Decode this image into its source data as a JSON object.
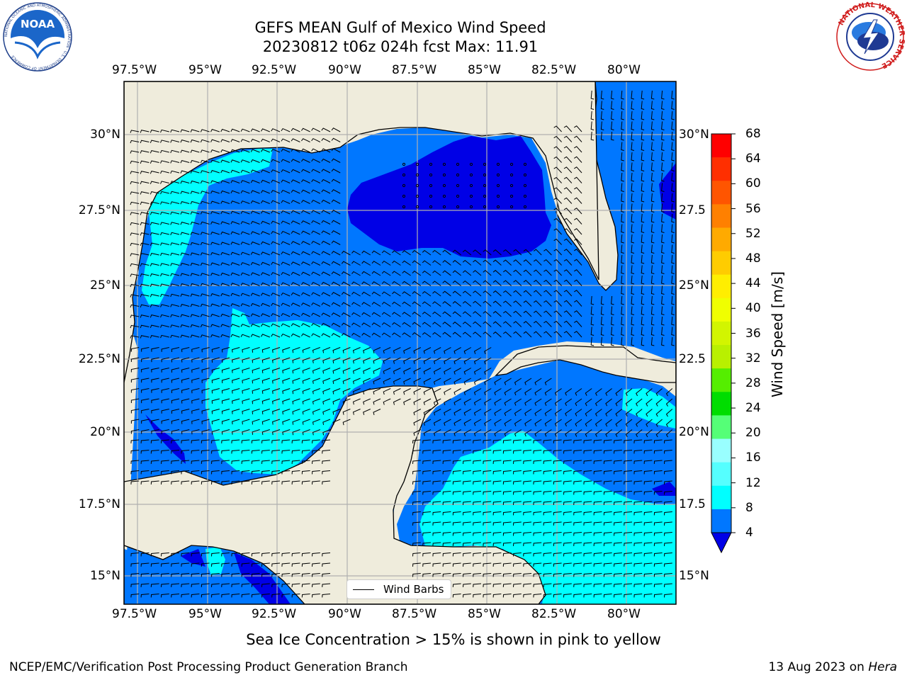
{
  "title": {
    "line1": "GEFS MEAN Gulf of Mexico Wind Speed",
    "line2": "20230812 t06z 024h fcst   Max: 11.91"
  },
  "logos": {
    "left": "noaa-logo",
    "left_text": "NOAA",
    "left_ring_text": "NATIONAL OCEANIC AND ATMOSPHERIC ADMINISTRATION · U.S. DEPARTMENT OF COMMERCE",
    "right": "nws-logo",
    "right_ring_text": "NATIONAL WEATHER SERVICE"
  },
  "map": {
    "lon_ticks_top": [
      "97.5°W",
      "95°W",
      "92.5°W",
      "90°W",
      "87.5°W",
      "85°W",
      "82.5°W",
      "80°W"
    ],
    "lon_ticks_bottom": [
      "97.5°W",
      "95°W",
      "92.5°W",
      "90°W",
      "87.5°W",
      "85°W",
      "82.5°W",
      "80°W"
    ],
    "lat_ticks_left": [
      "30°N",
      "27.5°N",
      "25°N",
      "22.5°N",
      "20°N",
      "17.5°N",
      "15°N"
    ],
    "lat_ticks_right": [
      "30°N",
      "27.5",
      "25°N",
      "22.5",
      "20°N",
      "17.5",
      "15°N"
    ],
    "legend_label": "Wind Barbs",
    "colors": {
      "land": "#efecdc",
      "speed_4_8": "#0077ff",
      "speed_8_12": "#00ffff",
      "speed_12_16": "#55ffff",
      "speed_below_4": "#0000e6",
      "grid": "#b0b0b0"
    }
  },
  "colorbar": {
    "title": "Wind Speed [m/s]",
    "labels": [
      "68",
      "64",
      "60",
      "56",
      "52",
      "48",
      "44",
      "40",
      "36",
      "32",
      "28",
      "24",
      "20",
      "16",
      "12",
      "8",
      "4"
    ],
    "colors": [
      "#ff0000",
      "#ff2f00",
      "#ff5500",
      "#ff8000",
      "#ffaa00",
      "#ffcc00",
      "#ffee00",
      "#f0ff00",
      "#d2f500",
      "#b9f000",
      "#55ee00",
      "#00dd00",
      "#55ff77",
      "#99ffff",
      "#55ffff",
      "#00ffff",
      "#0077ff"
    ],
    "under_color": "#0000e6"
  },
  "footer": {
    "note": "Sea Ice Concentration > 15% is shown in pink to yellow",
    "left": "NCEP/EMC/Verification Post Processing Product Generation Branch",
    "date": "13 Aug 2023 on ",
    "host": "Hera"
  }
}
